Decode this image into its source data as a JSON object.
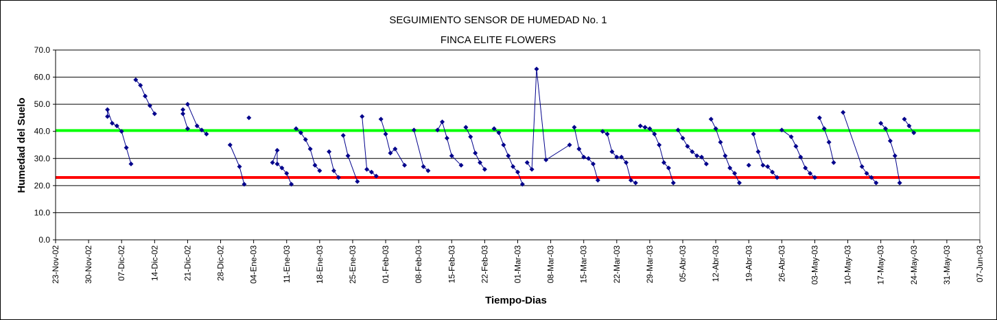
{
  "chart_data": {
    "type": "line",
    "title": "SEGUIMIENTO SENSOR DE HUMEDAD No. 1",
    "subtitle": "FINCA ELITE FLOWERS",
    "xlabel": "Tiempo-Dias",
    "ylabel": "Humedad del Suelo",
    "ylim": [
      0,
      70
    ],
    "xlim": [
      "2002-11-23",
      "2003-06-07"
    ],
    "grid": true,
    "y_ticks": [
      "0.0",
      "10.0",
      "20.0",
      "30.0",
      "40.0",
      "50.0",
      "60.0",
      "70.0"
    ],
    "x_ticks": [
      "23-Nov-02",
      "30-Nov-02",
      "07-Dic-02",
      "14-Dic-02",
      "21-Dic-02",
      "28-Dic-02",
      "04-Ene-03",
      "11-Ene-03",
      "18-Ene-03",
      "25-Ene-03",
      "01-Feb-03",
      "08-Feb-03",
      "15-Feb-03",
      "22-Feb-03",
      "01-Mar-03",
      "08-Mar-03",
      "15-Mar-03",
      "22-Mar-03",
      "29-Mar-03",
      "05-Abr-03",
      "12-Abr-03",
      "19-Abr-03",
      "26-Abr-03",
      "03-May-03",
      "10-May-03",
      "17-May-03",
      "24-May-03",
      "31-May-03",
      "07-Jun-03"
    ],
    "reference_lines": [
      {
        "value": 40.3,
        "color": "#00ff00"
      },
      {
        "value": 23.0,
        "color": "#ff0000"
      }
    ],
    "series_color": "#00008b",
    "segments": [
      [
        [
          "2002-12-04",
          45.5
        ],
        [
          "2002-12-04",
          48.0
        ],
        [
          "2002-12-05",
          43.0
        ],
        [
          "2002-12-06",
          42.0
        ],
        [
          "2002-12-07",
          40.0
        ],
        [
          "2002-12-08",
          34.0
        ],
        [
          "2002-12-09",
          28.0
        ]
      ],
      [
        [
          "2002-12-10",
          59.0
        ],
        [
          "2002-12-11",
          57.0
        ],
        [
          "2002-12-12",
          53.0
        ],
        [
          "2002-12-13",
          49.5
        ],
        [
          "2002-12-14",
          46.5
        ]
      ],
      [
        [
          "2002-12-20",
          48.0
        ],
        [
          "2002-12-20",
          46.5
        ],
        [
          "2002-12-21",
          41.0
        ]
      ],
      [
        [
          "2002-12-21",
          50.0
        ],
        [
          "2002-12-23",
          42.0
        ],
        [
          "2002-12-24",
          40.5
        ],
        [
          "2002-12-25",
          39.0
        ]
      ],
      [
        [
          "2002-12-30",
          35.0
        ],
        [
          "2003-01-01",
          27.0
        ],
        [
          "2003-01-02",
          20.5
        ]
      ],
      [
        [
          "2003-01-03",
          45.0
        ]
      ],
      [
        [
          "2003-01-08",
          28.5
        ],
        [
          "2003-01-09",
          33.0
        ],
        [
          "2003-01-09",
          28.0
        ],
        [
          "2003-01-10",
          26.5
        ],
        [
          "2003-01-11",
          24.5
        ],
        [
          "2003-01-12",
          20.5
        ]
      ],
      [
        [
          "2003-01-13",
          41.0
        ],
        [
          "2003-01-14",
          39.5
        ],
        [
          "2003-01-15",
          37.0
        ],
        [
          "2003-01-16",
          33.5
        ],
        [
          "2003-01-17",
          27.5
        ],
        [
          "2003-01-18",
          25.5
        ]
      ],
      [
        [
          "2003-01-20",
          32.5
        ],
        [
          "2003-01-21",
          25.5
        ],
        [
          "2003-01-22",
          23.0
        ]
      ],
      [
        [
          "2003-01-23",
          38.5
        ],
        [
          "2003-01-24",
          31.0
        ],
        [
          "2003-01-26",
          21.5
        ]
      ],
      [
        [
          "2003-01-27",
          45.5
        ],
        [
          "2003-01-28",
          26.0
        ],
        [
          "2003-01-29",
          25.0
        ],
        [
          "2003-01-30",
          23.5
        ]
      ],
      [
        [
          "2003-01-31",
          44.5
        ],
        [
          "2003-02-01",
          39.0
        ],
        [
          "2003-02-02",
          32.0
        ],
        [
          "2003-02-03",
          33.5
        ],
        [
          "2003-02-05",
          27.5
        ]
      ],
      [
        [
          "2003-02-07",
          40.5
        ],
        [
          "2003-02-09",
          27.0
        ],
        [
          "2003-02-10",
          25.5
        ]
      ],
      [
        [
          "2003-02-12",
          40.5
        ],
        [
          "2003-02-13",
          43.5
        ],
        [
          "2003-02-14",
          37.5
        ],
        [
          "2003-02-15",
          31.0
        ],
        [
          "2003-02-17",
          27.5
        ]
      ],
      [
        [
          "2003-02-18",
          41.5
        ],
        [
          "2003-02-19",
          38.0
        ],
        [
          "2003-02-20",
          32.0
        ],
        [
          "2003-02-21",
          28.5
        ],
        [
          "2003-02-22",
          26.0
        ]
      ],
      [
        [
          "2003-02-24",
          41.0
        ],
        [
          "2003-02-25",
          39.5
        ],
        [
          "2003-02-26",
          35.0
        ],
        [
          "2003-02-27",
          31.0
        ],
        [
          "2003-02-28",
          27.0
        ],
        [
          "2003-03-01",
          25.0
        ],
        [
          "2003-03-02",
          20.5
        ]
      ],
      [
        [
          "2003-03-03",
          28.5
        ],
        [
          "2003-03-04",
          26.0
        ],
        [
          "2003-03-05",
          63.0
        ],
        [
          "2003-03-07",
          29.5
        ],
        [
          "2003-03-12",
          35.0
        ]
      ],
      [
        [
          "2003-03-13",
          41.5
        ],
        [
          "2003-03-14",
          33.5
        ],
        [
          "2003-03-15",
          30.5
        ],
        [
          "2003-03-16",
          30.0
        ],
        [
          "2003-03-17",
          28.0
        ],
        [
          "2003-03-18",
          22.0
        ]
      ],
      [
        [
          "2003-03-19",
          40.0
        ],
        [
          "2003-03-20",
          39.0
        ],
        [
          "2003-03-21",
          32.5
        ],
        [
          "2003-03-22",
          30.5
        ],
        [
          "2003-03-23",
          30.5
        ],
        [
          "2003-03-24",
          28.5
        ],
        [
          "2003-03-25",
          22.0
        ],
        [
          "2003-03-26",
          21.0
        ]
      ],
      [
        [
          "2003-03-27",
          42.0
        ],
        [
          "2003-03-28",
          41.5
        ],
        [
          "2003-03-29",
          41.0
        ],
        [
          "2003-03-30",
          39.0
        ],
        [
          "2003-03-31",
          35.0
        ],
        [
          "2003-04-01",
          28.5
        ],
        [
          "2003-04-02",
          26.5
        ],
        [
          "2003-04-03",
          21.0
        ]
      ],
      [
        [
          "2003-04-04",
          40.5
        ],
        [
          "2003-04-05",
          37.5
        ],
        [
          "2003-04-06",
          34.5
        ],
        [
          "2003-04-07",
          32.5
        ],
        [
          "2003-04-08",
          31.0
        ],
        [
          "2003-04-09",
          30.5
        ],
        [
          "2003-04-10",
          28.0
        ]
      ],
      [
        [
          "2003-04-11",
          44.5
        ],
        [
          "2003-04-12",
          41.0
        ],
        [
          "2003-04-13",
          36.0
        ],
        [
          "2003-04-14",
          31.0
        ],
        [
          "2003-04-15",
          26.5
        ],
        [
          "2003-04-16",
          24.5
        ],
        [
          "2003-04-17",
          21.0
        ]
      ],
      [
        [
          "2003-04-19",
          27.5
        ]
      ],
      [
        [
          "2003-04-20",
          39.0
        ],
        [
          "2003-04-21",
          32.5
        ],
        [
          "2003-04-22",
          27.5
        ],
        [
          "2003-04-23",
          27.0
        ],
        [
          "2003-04-24",
          25.0
        ],
        [
          "2003-04-25",
          23.0
        ]
      ],
      [
        [
          "2003-04-26",
          40.5
        ],
        [
          "2003-04-28",
          38.0
        ],
        [
          "2003-04-29",
          34.5
        ],
        [
          "2003-04-30",
          30.5
        ],
        [
          "2003-05-01",
          26.5
        ],
        [
          "2003-05-02",
          24.5
        ],
        [
          "2003-05-03",
          23.0
        ]
      ],
      [
        [
          "2003-05-04",
          45.0
        ],
        [
          "2003-05-05",
          41.0
        ],
        [
          "2003-05-06",
          36.0
        ],
        [
          "2003-05-07",
          28.5
        ]
      ],
      [
        [
          "2003-05-09",
          47.0
        ],
        [
          "2003-05-13",
          27.0
        ],
        [
          "2003-05-14",
          24.5
        ],
        [
          "2003-05-15",
          23.0
        ],
        [
          "2003-05-16",
          21.0
        ]
      ],
      [
        [
          "2003-05-17",
          43.0
        ],
        [
          "2003-05-18",
          41.0
        ],
        [
          "2003-05-19",
          36.5
        ],
        [
          "2003-05-20",
          31.0
        ],
        [
          "2003-05-21",
          21.0
        ]
      ],
      [
        [
          "2003-05-22",
          44.5
        ],
        [
          "2003-05-23",
          42.0
        ],
        [
          "2003-05-24",
          39.5
        ]
      ]
    ]
  }
}
